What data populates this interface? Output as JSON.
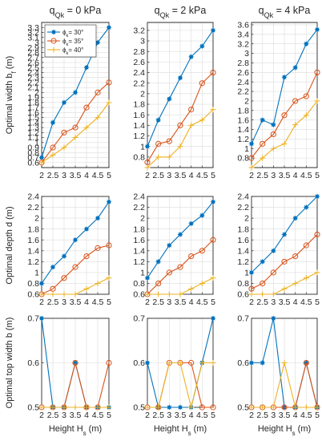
{
  "figure": {
    "column_titles": [
      {
        "main": "q",
        "sub": "Qk",
        "rest": " = 0 kPa"
      },
      {
        "main": "q",
        "sub": "Qk",
        "rest": " = 2 kPa"
      },
      {
        "main": "q",
        "sub": "Qk",
        "rest": " = 4 kPa"
      }
    ],
    "row_labels": [
      {
        "main": "Optimal width b",
        "sub": "f",
        "rest": " (m)"
      },
      {
        "main": "Optimal depth d (m)",
        "sub": "",
        "rest": ""
      },
      {
        "main": "Optimal top width b (m)",
        "sub": "",
        "rest": ""
      }
    ],
    "x_label": {
      "main": "Height H",
      "sub": "s",
      "rest": " (m)"
    },
    "legend": {
      "position": "top-left of first panel",
      "entries": [
        {
          "main": "ϕ",
          "sub": "k",
          "rest": "= 30°"
        },
        {
          "main": "ϕ",
          "sub": "k",
          "rest": "= 35°"
        },
        {
          "main": "ϕ",
          "sub": "k",
          "rest": "= 40°"
        }
      ]
    },
    "colors": {
      "series1": "#0072bd",
      "series2": "#d95319",
      "series3": "#edb120"
    }
  },
  "chart_data": [
    {
      "type": "line",
      "row": 0,
      "col": 0,
      "x": [
        2,
        2.5,
        3,
        3.5,
        4,
        4.5,
        5
      ],
      "xlim": [
        2,
        5
      ],
      "xticks": [
        "2",
        "2.5",
        "3",
        "3.5",
        "4",
        "4.5",
        "5"
      ],
      "ylim": [
        0.5,
        3.4
      ],
      "yticks": [
        "0.6",
        "0.7",
        "0.8",
        "0.9",
        "1",
        "1.1",
        "1.2",
        "1.3",
        "1.4",
        "1.5",
        "1.6",
        "1.7",
        "1.8",
        "1.9",
        "2",
        "2.1",
        "2.2",
        "2.3",
        "2.4",
        "2.5",
        "2.6",
        "2.7",
        "2.8",
        "2.9",
        "3",
        "3.1",
        "3.2",
        "3.3"
      ],
      "grid": true,
      "series": [
        {
          "name": "ϕk= 30°",
          "marker": "star",
          "values": [
            0.7,
            1.4,
            1.8,
            2.0,
            2.5,
            3.0,
            3.3
          ]
        },
        {
          "name": "ϕk= 35°",
          "marker": "circle",
          "values": [
            0.6,
            0.9,
            1.2,
            1.3,
            1.7,
            2.0,
            2.2
          ]
        },
        {
          "name": "ϕk= 40°",
          "marker": "plus",
          "values": [
            0.6,
            0.75,
            0.9,
            1.1,
            1.3,
            1.5,
            1.8
          ]
        }
      ]
    },
    {
      "type": "line",
      "row": 0,
      "col": 1,
      "x": [
        2,
        2.5,
        3,
        3.5,
        4,
        4.5,
        5
      ],
      "xlim": [
        2,
        5
      ],
      "xticks": [
        "2",
        "2.5",
        "3",
        "3.5",
        "4",
        "4.5",
        "5"
      ],
      "ylim": [
        0.6,
        3.35
      ],
      "yticks": [
        "0.8",
        "1",
        "1.2",
        "1.4",
        "1.6",
        "1.8",
        "2",
        "2.2",
        "2.4",
        "2.6",
        "2.8",
        "3",
        "3.2"
      ],
      "grid": true,
      "series": [
        {
          "name": "ϕk= 30°",
          "marker": "star",
          "values": [
            1.0,
            1.5,
            1.9,
            2.3,
            2.7,
            2.9,
            3.2
          ]
        },
        {
          "name": "ϕk= 35°",
          "marker": "circle",
          "values": [
            0.7,
            1.05,
            1.1,
            1.4,
            1.7,
            2.2,
            2.4
          ]
        },
        {
          "name": "ϕk= 40°",
          "marker": "plus",
          "values": [
            0.6,
            0.8,
            0.8,
            1.0,
            1.4,
            1.5,
            1.7
          ]
        }
      ]
    },
    {
      "type": "line",
      "row": 0,
      "col": 2,
      "x": [
        2,
        2.5,
        3,
        3.5,
        4,
        4.5,
        5
      ],
      "xlim": [
        2,
        5
      ],
      "xticks": [
        "2",
        "2.5",
        "3",
        "3.5",
        "4",
        "4.5",
        "5"
      ],
      "ylim": [
        0.6,
        3.65
      ],
      "yticks": [
        "0.8",
        "1",
        "1.2",
        "1.4",
        "1.6",
        "1.8",
        "2",
        "2.2",
        "2.4",
        "2.6",
        "2.8",
        "3",
        "3.2",
        "3.4",
        "3.6"
      ],
      "grid": true,
      "series": [
        {
          "name": "ϕk= 30°",
          "marker": "star",
          "values": [
            1.1,
            1.6,
            1.5,
            2.5,
            2.7,
            3.2,
            3.5
          ]
        },
        {
          "name": "ϕk= 35°",
          "marker": "circle",
          "values": [
            0.8,
            1.1,
            1.3,
            1.7,
            2.0,
            2.1,
            2.6
          ]
        },
        {
          "name": "ϕk= 40°",
          "marker": "plus",
          "values": [
            0.6,
            0.8,
            1.0,
            1.1,
            1.5,
            1.7,
            2.0
          ]
        }
      ]
    },
    {
      "type": "line",
      "row": 1,
      "col": 0,
      "x": [
        2,
        2.5,
        3,
        3.5,
        4,
        4.5,
        5
      ],
      "xlim": [
        2,
        5
      ],
      "xticks": [
        "2",
        "2.5",
        "3",
        "3.5",
        "4",
        "4.5",
        "5"
      ],
      "ylim": [
        0.6,
        2.4
      ],
      "yticks": [
        "0.6",
        "0.8",
        "1",
        "1.2",
        "1.4",
        "1.6",
        "1.8",
        "2",
        "2.2",
        "2.4"
      ],
      "grid": true,
      "series": [
        {
          "name": "ϕk= 30°",
          "marker": "star",
          "values": [
            0.8,
            1.1,
            1.3,
            1.6,
            1.8,
            2.0,
            2.3
          ]
        },
        {
          "name": "ϕk= 35°",
          "marker": "circle",
          "values": [
            0.6,
            0.7,
            0.9,
            1.1,
            1.3,
            1.45,
            1.5
          ]
        },
        {
          "name": "ϕk= 40°",
          "marker": "plus",
          "values": [
            0.6,
            0.6,
            0.6,
            0.6,
            0.7,
            0.8,
            0.9
          ]
        }
      ]
    },
    {
      "type": "line",
      "row": 1,
      "col": 1,
      "x": [
        2,
        2.5,
        3,
        3.5,
        4,
        4.5,
        5
      ],
      "xlim": [
        2,
        5
      ],
      "xticks": [
        "2",
        "2.5",
        "3",
        "3.5",
        "4",
        "4.5",
        "5"
      ],
      "ylim": [
        0.6,
        2.4
      ],
      "yticks": [
        "0.6",
        "0.8",
        "1",
        "1.2",
        "1.4",
        "1.6",
        "1.8",
        "2",
        "2.2",
        "2.4"
      ],
      "grid": true,
      "series": [
        {
          "name": "ϕk= 30°",
          "marker": "star",
          "values": [
            0.9,
            1.2,
            1.5,
            1.7,
            1.9,
            2.05,
            2.3
          ]
        },
        {
          "name": "ϕk= 35°",
          "marker": "circle",
          "values": [
            0.6,
            0.8,
            1.0,
            1.1,
            1.3,
            1.4,
            1.6
          ]
        },
        {
          "name": "ϕk= 40°",
          "marker": "plus",
          "values": [
            0.6,
            0.6,
            0.6,
            0.6,
            0.7,
            0.8,
            0.9
          ]
        }
      ]
    },
    {
      "type": "line",
      "row": 1,
      "col": 2,
      "x": [
        2,
        2.5,
        3,
        3.5,
        4,
        4.5,
        5
      ],
      "xlim": [
        2,
        5
      ],
      "xticks": [
        "2",
        "2.5",
        "3",
        "3.5",
        "4",
        "4.5",
        "5"
      ],
      "ylim": [
        0.6,
        2.4
      ],
      "yticks": [
        "0.6",
        "0.8",
        "1",
        "1.2",
        "1.4",
        "1.6",
        "1.8",
        "2",
        "2.2",
        "2.4"
      ],
      "grid": true,
      "series": [
        {
          "name": "ϕk= 30°",
          "marker": "star",
          "values": [
            1.0,
            1.2,
            1.4,
            1.7,
            2.0,
            2.2,
            2.4
          ]
        },
        {
          "name": "ϕk= 35°",
          "marker": "circle",
          "values": [
            0.7,
            0.8,
            1.0,
            1.2,
            1.3,
            1.5,
            1.7
          ]
        },
        {
          "name": "ϕk= 40°",
          "marker": "plus",
          "values": [
            0.6,
            0.6,
            0.6,
            0.7,
            0.8,
            0.9,
            1.0
          ]
        }
      ]
    },
    {
      "type": "line",
      "row": 2,
      "col": 0,
      "x": [
        2,
        2.5,
        3,
        3.5,
        4,
        4.5,
        5
      ],
      "xlim": [
        2,
        5
      ],
      "xticks": [
        "2",
        "2.5",
        "3",
        "3.5",
        "4",
        "4.5",
        "5"
      ],
      "ylim": [
        0.5,
        0.7
      ],
      "yticks": [
        "0.5",
        "0.6",
        "0.7"
      ],
      "grid": true,
      "series": [
        {
          "name": "ϕk= 30°",
          "marker": "star",
          "values": [
            0.7,
            0.5,
            0.5,
            0.6,
            0.5,
            0.5,
            0.5
          ]
        },
        {
          "name": "ϕk= 35°",
          "marker": "circle",
          "values": [
            0.5,
            0.5,
            0.5,
            0.6,
            0.5,
            0.5,
            0.6
          ]
        },
        {
          "name": "ϕk= 40°",
          "marker": "plus",
          "values": [
            0.5,
            0.5,
            0.5,
            0.5,
            0.5,
            0.5,
            0.5
          ]
        }
      ]
    },
    {
      "type": "line",
      "row": 2,
      "col": 1,
      "x": [
        2,
        2.5,
        3,
        3.5,
        4,
        4.5,
        5
      ],
      "xlim": [
        2,
        5
      ],
      "xticks": [
        "2",
        "2.5",
        "3",
        "3.5",
        "4",
        "4.5",
        "5"
      ],
      "ylim": [
        0.5,
        0.7
      ],
      "yticks": [
        "0.5",
        "0.6",
        "0.7"
      ],
      "grid": true,
      "series": [
        {
          "name": "ϕk= 30°",
          "marker": "star",
          "values": [
            0.6,
            0.5,
            0.5,
            0.5,
            0.5,
            0.6,
            0.7
          ]
        },
        {
          "name": "ϕk= 35°",
          "marker": "circle",
          "values": [
            0.5,
            0.5,
            0.6,
            0.6,
            0.6,
            0.5,
            0.5
          ]
        },
        {
          "name": "ϕk= 40°",
          "marker": "plus",
          "values": [
            0.5,
            0.5,
            0.6,
            0.6,
            0.5,
            0.6,
            0.6
          ]
        }
      ]
    },
    {
      "type": "line",
      "row": 2,
      "col": 2,
      "x": [
        2,
        2.5,
        3,
        3.5,
        4,
        4.5,
        5
      ],
      "xlim": [
        2,
        5
      ],
      "xticks": [
        "2",
        "2.5",
        "3",
        "3.5",
        "4",
        "4.5",
        "5"
      ],
      "ylim": [
        0.5,
        0.7
      ],
      "yticks": [
        "0.5",
        "0.6",
        "0.7"
      ],
      "grid": true,
      "series": [
        {
          "name": "ϕk= 30°",
          "marker": "star",
          "values": [
            0.6,
            0.6,
            0.7,
            0.5,
            0.5,
            0.6,
            0.5
          ]
        },
        {
          "name": "ϕk= 35°",
          "marker": "circle",
          "values": [
            0.5,
            0.5,
            0.5,
            0.5,
            0.5,
            0.6,
            0.5
          ]
        },
        {
          "name": "ϕk= 40°",
          "marker": "plus",
          "values": [
            0.5,
            0.5,
            0.5,
            0.6,
            0.5,
            0.5,
            0.5
          ]
        }
      ]
    }
  ]
}
